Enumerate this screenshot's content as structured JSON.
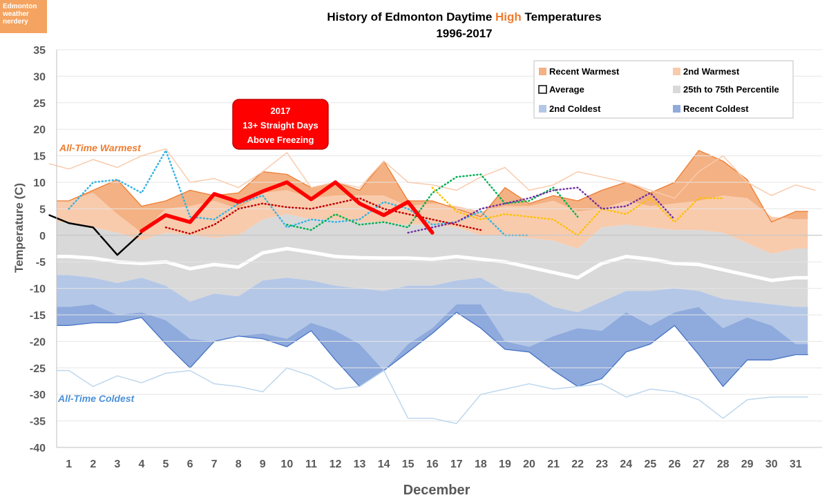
{
  "badge": {
    "lines": [
      "Edmonton",
      "weather",
      "nerdery"
    ]
  },
  "chart_data": {
    "type": "area",
    "title_parts": [
      "History of Edmonton Daytime ",
      "High",
      " Temperatures"
    ],
    "subtitle": "1996-2017",
    "xlabel": "December",
    "ylabel": "Temperature (C)",
    "ylim": [
      -40,
      35
    ],
    "yticks": [
      -40,
      -35,
      -30,
      -25,
      -20,
      -15,
      -10,
      -5,
      0,
      5,
      10,
      15,
      20,
      25,
      30,
      35
    ],
    "x": [
      1,
      2,
      3,
      4,
      5,
      6,
      7,
      8,
      9,
      10,
      11,
      12,
      13,
      14,
      15,
      16,
      17,
      18,
      19,
      20,
      21,
      22,
      23,
      24,
      25,
      26,
      27,
      28,
      29,
      30,
      31
    ],
    "legend_position": "top-right",
    "legend": [
      {
        "key": "recent_warmest",
        "label": "Recent Warmest"
      },
      {
        "key": "second_warmest",
        "label": "2nd Warmest"
      },
      {
        "key": "average",
        "label": "Average"
      },
      {
        "key": "percentile",
        "label": "25th to 75th Percentile"
      },
      {
        "key": "second_coldest",
        "label": "2nd Coldest"
      },
      {
        "key": "recent_coldest",
        "label": "Recent Coldest"
      }
    ],
    "colors": {
      "recent_warmest": "#f4b183",
      "second_warmest": "#f8cbad",
      "average": "#ffffff",
      "percentile": "#d9d9d9",
      "second_coldest": "#b4c7e7",
      "recent_coldest": "#8faadc",
      "all_time_warm": "#f8cbad",
      "all_time_cold": "#bdd7ee",
      "edge_warm": "#ed7d31",
      "edge_cold": "#4472c4",
      "highlight": "#ff0000"
    },
    "all_time_warmest": [
      13.5,
      12.5,
      14.3,
      12.8,
      15,
      16.3,
      10,
      10.7,
      9,
      12,
      15.6,
      9,
      10,
      9,
      14,
      10,
      9.5,
      8.5,
      11,
      12.8,
      8.5,
      9.5,
      12,
      11,
      10,
      8.5,
      7,
      12,
      15,
      10,
      7.5,
      9.5,
      8.5
    ],
    "all_time_warmest_x": [
      0.2,
      1,
      2,
      3,
      4,
      5,
      6,
      7,
      8,
      9,
      10,
      11,
      12,
      13,
      14,
      15,
      16,
      17,
      18,
      19,
      20,
      21,
      22,
      23,
      24,
      25,
      26,
      27,
      28,
      29,
      30,
      31,
      31.8
    ],
    "recent_warmest": [
      6.5,
      8.5,
      10.5,
      5.5,
      6.5,
      8.5,
      7.5,
      8,
      12,
      11.5,
      9,
      10,
      8.5,
      14,
      6.5,
      6.5,
      5,
      3.5,
      9,
      6,
      7.5,
      6.5,
      8.5,
      10,
      8,
      10,
      16,
      14,
      10.5,
      2.5,
      4.5
    ],
    "second_warmest": [
      6.5,
      8,
      4,
      0.5,
      5,
      5.5,
      6.5,
      5,
      8,
      8.5,
      7,
      7.5,
      7.5,
      7.5,
      5.5,
      6,
      5.5,
      4.5,
      5.5,
      5.5,
      6.5,
      4.5,
      5,
      6.5,
      5.5,
      6,
      6.5,
      7.5,
      7,
      3.5,
      3
    ],
    "p75": [
      2.5,
      1.5,
      0.5,
      -1,
      0.5,
      0,
      -0.5,
      0,
      3,
      4,
      3,
      3,
      2.5,
      2.5,
      2,
      2,
      1.5,
      0,
      0,
      -0.5,
      -1,
      -2.5,
      1.5,
      2,
      1.5,
      1,
      1,
      0.5,
      -1.5,
      -3.5,
      -2.5
    ],
    "average": [
      -4,
      -4.3,
      -5,
      -5.3,
      -5,
      -6.3,
      -5.5,
      -6,
      -3.3,
      -2.5,
      -3.2,
      -4,
      -4.2,
      -4.3,
      -4.3,
      -4.5,
      -4,
      -4.5,
      -5,
      -6,
      -7,
      -8,
      -5.3,
      -4,
      -4.5,
      -5.3,
      -5.5,
      -6.5,
      -7.5,
      -8.5,
      -8
    ],
    "p25": [
      -7.5,
      -8,
      -9,
      -8,
      -9.5,
      -12.5,
      -11,
      -11.5,
      -8.5,
      -8,
      -8.5,
      -9.5,
      -10,
      -10.5,
      -9.5,
      -9.5,
      -8.5,
      -8,
      -10.5,
      -11,
      -13.5,
      -14.5,
      -12.5,
      -10.5,
      -10.5,
      -10,
      -10.5,
      -12,
      -12.5,
      -13,
      -13.5
    ],
    "second_coldest": [
      -13.5,
      -13,
      -15,
      -14.5,
      -16,
      -19.5,
      -20,
      -19,
      -18.5,
      -19.5,
      -16.5,
      -18,
      -20.5,
      -25.5,
      -20.5,
      -17.5,
      -13,
      -13,
      -20,
      -21,
      -19,
      -17.5,
      -18,
      -14.5,
      -17,
      -14.5,
      -13.5,
      -17.5,
      -15.5,
      -17,
      -20.5
    ],
    "recent_coldest": [
      -17,
      -16.5,
      -16.5,
      -15.5,
      -20.5,
      -25,
      -20,
      -19,
      -19.5,
      -21,
      -18,
      -23.5,
      -28.5,
      -25.5,
      -22,
      -18.5,
      -14.5,
      -17.5,
      -21.5,
      -22,
      -25.5,
      -28.5,
      -27,
      -22,
      -20.5,
      -17,
      -22.5,
      -28.5,
      -23.5,
      -23.5,
      -22.5
    ],
    "all_time_coldest": [
      -25.5,
      -28.5,
      -26.5,
      -27.8,
      -26,
      -25.5,
      -28,
      -28.5,
      -29.5,
      -25,
      -26.5,
      -29,
      -28.5,
      -25.5,
      -34.5,
      -34.5,
      -35.5,
      -30,
      -29,
      -28,
      -29,
      -28.5,
      -28,
      -30.5,
      -29,
      -29.5,
      -31,
      -34.5,
      -31,
      -30.5,
      -30.5
    ],
    "series": [
      {
        "name": "black",
        "color": "#000000",
        "x": [
          0.2,
          1,
          2,
          3,
          4
        ],
        "values": [
          3.8,
          2.3,
          1.5,
          -3.7,
          0.5
        ]
      },
      {
        "name": "red",
        "color": "#ff0000",
        "x": [
          4,
          5,
          6,
          7,
          8,
          9,
          10,
          11,
          12,
          13,
          14,
          15,
          16
        ],
        "values": [
          0.8,
          3.8,
          2.5,
          7.8,
          6.3,
          8.3,
          10,
          6.8,
          10,
          6,
          3.8,
          6.3,
          0.5
        ]
      },
      {
        "name": "cyan",
        "color": "#33b3e5",
        "x": [
          1,
          2,
          3,
          4,
          5,
          6,
          7,
          8,
          9,
          10,
          11,
          12,
          13,
          14,
          15,
          16,
          17,
          18,
          19,
          20
        ],
        "values": [
          5,
          10,
          10.5,
          8,
          16,
          3.5,
          3,
          6,
          7.5,
          1.5,
          3,
          2.5,
          3,
          6.3,
          5,
          2,
          2.5,
          4.5,
          0,
          0
        ]
      },
      {
        "name": "darkred",
        "color": "#c00000",
        "x": [
          5,
          6,
          7,
          8,
          9,
          10,
          11,
          12,
          13,
          14,
          15,
          16,
          17,
          18
        ],
        "values": [
          1.5,
          0.3,
          2,
          5,
          6,
          5.3,
          5,
          6,
          7,
          5,
          4,
          3,
          2,
          1
        ]
      },
      {
        "name": "green",
        "color": "#00b050",
        "x": [
          10,
          11,
          12,
          13,
          14,
          15,
          16,
          17,
          18,
          19,
          20,
          21,
          22
        ],
        "values": [
          2,
          1,
          4,
          2,
          2.5,
          1.5,
          8,
          11,
          11.5,
          6,
          6.5,
          9,
          3.5
        ]
      },
      {
        "name": "yellow",
        "color": "#ffc000",
        "x": [
          16,
          17,
          18,
          19,
          20,
          21,
          22,
          23,
          24,
          25,
          26,
          27,
          28
        ],
        "values": [
          9,
          4.5,
          3,
          4,
          3.5,
          3,
          0,
          5,
          4,
          7,
          2.5,
          7,
          7
        ]
      },
      {
        "name": "purple",
        "color": "#7030a0",
        "x": [
          15,
          16,
          17,
          18,
          19,
          20,
          21,
          22,
          23,
          24,
          25,
          26
        ],
        "values": [
          0.5,
          1.5,
          2.5,
          5,
          6,
          7,
          8.5,
          9,
          5,
          5.5,
          8,
          3
        ]
      }
    ],
    "annotations": {
      "all_time_warmest_label": "All-Time Warmest",
      "all_time_coldest_label": "All-Time Coldest",
      "callout_lines": [
        "2017",
        "13+ Straight Days",
        "Above Freezing"
      ]
    }
  }
}
